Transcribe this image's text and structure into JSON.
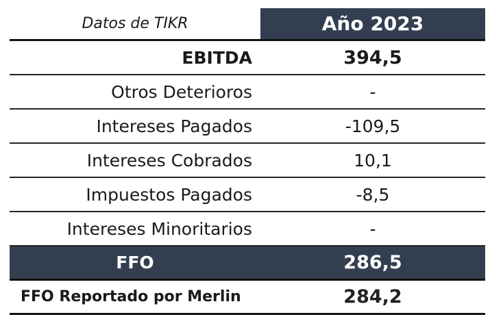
{
  "header": {
    "label": "Datos de TIKR",
    "year": "Año 2023"
  },
  "rows": [
    {
      "label": "EBITDA",
      "value": "394,5"
    },
    {
      "label": "Otros Deterioros",
      "value": "-"
    },
    {
      "label": "Intereses Pagados",
      "value": "-109,5"
    },
    {
      "label": "Intereses Cobrados",
      "value": "10,1"
    },
    {
      "label": "Impuestos Pagados",
      "value": "-8,5"
    },
    {
      "label": "Intereses Minoritarios",
      "value": "-"
    },
    {
      "label": "FFO",
      "value": "286,5"
    },
    {
      "label": "FFO Reportado por Merlin",
      "value": "284,2"
    }
  ],
  "colors": {
    "header_bg": "#333f50",
    "header_text": "#ffffff",
    "rule": "#222222"
  }
}
